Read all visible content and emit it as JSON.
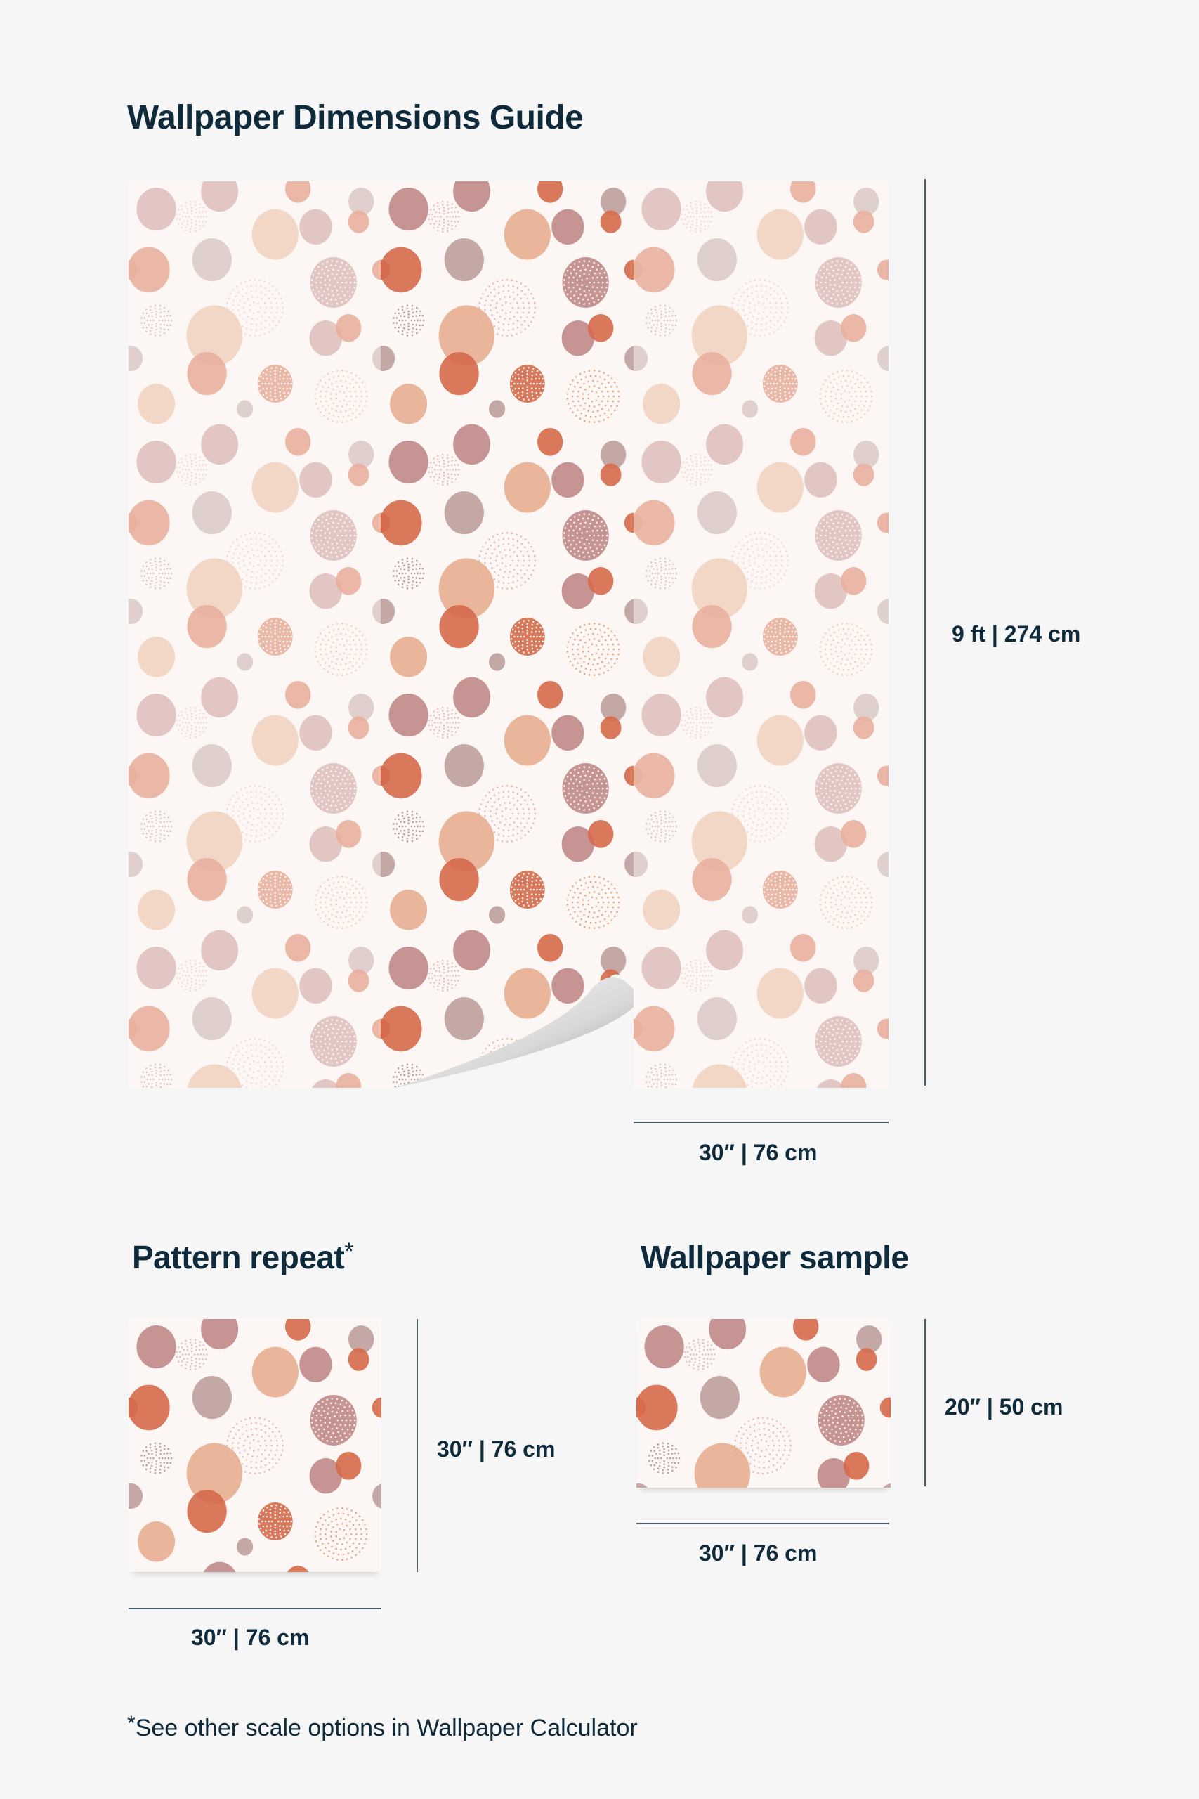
{
  "title": "Wallpaper Dimensions Guide",
  "main": {
    "height_label": "9 ft | 274 cm",
    "width_label": "30″ | 76 cm"
  },
  "pattern_repeat": {
    "heading": "Pattern repeat",
    "asterisk": "*",
    "height_label": "30″ | 76 cm",
    "width_label": "30″ | 76 cm"
  },
  "sample": {
    "heading": "Wallpaper sample",
    "height_label": "20″ | 50 cm",
    "width_label": "30″ | 76 cm"
  },
  "footnote": {
    "asterisk": "*",
    "text": "See other scale options in Wallpaper Calculator"
  },
  "colors": {
    "text": "#0f2a3a",
    "background": "#f6f6f6",
    "paper": "#fcf7f4",
    "mauve": "#c08a87",
    "orange": "#d66b4c",
    "peach": "#e7af91",
    "greymauve": "#bda09e"
  }
}
